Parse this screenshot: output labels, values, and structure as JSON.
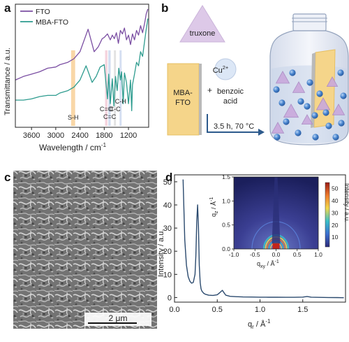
{
  "panels": {
    "a": "a",
    "b": "b",
    "c": "c",
    "d": "d"
  },
  "colors": {
    "fto": "#7b4fa3",
    "mba_fto": "#2e9c8f",
    "band_sh": "#f7c98a",
    "band_co": "#f2c6d3",
    "band_cc": "#c6d3ec",
    "band_ch": "#d8d8d8",
    "saxs_line": "#2b4a6e",
    "slab": "#f5d58a",
    "truxone": "#ddc9e8",
    "sphere": "#4a86cf",
    "jar_fill": "#e8edf5"
  },
  "ir": {
    "legend": [
      "FTO",
      "MBA-FTO"
    ],
    "ylabel": "Transmittance / a.u.",
    "xlabel": "Wavelength / cm",
    "xlabel_sup": "-1",
    "xticks": [
      "3600",
      "3000",
      "2400",
      "1800",
      "1200"
    ],
    "band_labels": [
      "S-H",
      "C=O",
      "C=C",
      "C-C",
      "C-H"
    ]
  },
  "scheme": {
    "truxone": "truxone",
    "ion": "Cu",
    "ion_charge": "2+",
    "plus": "+",
    "reagent_line1": "benzoic",
    "reagent_line2": "acid",
    "substrate_line1": "MBA-",
    "substrate_line2": "FTO",
    "condition": "3.5 h, 70 °C"
  },
  "sem": {
    "scale_bar": "2 μm"
  },
  "giwaxs": {
    "qz_label": "q",
    "qz_sub": "z",
    "qxy_label": "q",
    "qxy_sub": "xy",
    "unit": " / Å",
    "unit_sup": "-1",
    "qz_ticks": [
      "0.0",
      "0.5",
      "1.0",
      "1.5"
    ],
    "qxy_ticks": [
      "-1.0",
      "-0.5",
      "0.0",
      "0.5",
      "1.0"
    ],
    "colorbar_label": "Intensity / a.u.",
    "colorbar_ticks": [
      "10",
      "20",
      "30",
      "40",
      "50"
    ]
  },
  "chart_data": [
    {
      "type": "line",
      "title": "",
      "xlabel": "Wavelength / cm-1",
      "ylabel": "Transmittance / a.u.",
      "xlim": [
        4000,
        700
      ],
      "xticks": [
        3600,
        3000,
        2400,
        1800,
        1200
      ],
      "series": [
        {
          "name": "FTO",
          "x": [
            4000,
            3800,
            3600,
            3400,
            3200,
            3000,
            2900,
            2700,
            2550,
            2400,
            2200,
            2050,
            1950,
            1850,
            1800,
            1720,
            1650,
            1600,
            1550,
            1500,
            1450,
            1400,
            1350,
            1300,
            1250,
            1200,
            1150,
            1100,
            1050,
            1000,
            950,
            900,
            850,
            800,
            760,
            720
          ],
          "y": [
            0.4,
            0.43,
            0.45,
            0.47,
            0.5,
            0.51,
            0.53,
            0.55,
            0.58,
            0.64,
            0.83,
            0.64,
            0.68,
            0.75,
            0.76,
            0.79,
            0.74,
            0.78,
            0.75,
            0.8,
            0.71,
            0.82,
            0.79,
            0.84,
            0.74,
            0.78,
            0.7,
            0.79,
            0.74,
            0.82,
            0.78,
            0.86,
            0.8,
            0.88,
            0.96,
            1.0
          ]
        },
        {
          "name": "MBA-FTO",
          "x": [
            4000,
            3800,
            3600,
            3400,
            3200,
            3000,
            2900,
            2700,
            2550,
            2400,
            2250,
            2100,
            2000,
            1900,
            1800,
            1720,
            1690,
            1650,
            1600,
            1560,
            1520,
            1480,
            1440,
            1400,
            1370,
            1330,
            1300,
            1250,
            1200,
            1150,
            1120,
            1100,
            1050,
            1000,
            950,
            900,
            850,
            800,
            760,
            720
          ],
          "y": [
            0.23,
            0.23,
            0.24,
            0.26,
            0.27,
            0.27,
            0.29,
            0.31,
            0.34,
            0.4,
            0.52,
            0.38,
            0.43,
            0.51,
            0.53,
            0.24,
            0.45,
            0.2,
            0.41,
            0.18,
            0.43,
            0.31,
            0.5,
            0.4,
            0.47,
            0.2,
            0.46,
            0.38,
            0.2,
            0.4,
            0.14,
            0.36,
            0.45,
            0.55,
            0.52,
            0.64,
            0.6,
            0.73,
            0.83,
            0.92
          ]
        }
      ],
      "bands_cm": {
        "S-H": [
          2620,
          2520
        ],
        "C=O": [
          1780,
          1720
        ],
        "C=C": [
          1700,
          1640
        ],
        "C-C": [
          1560,
          1510
        ],
        "C-H": [
          1420,
          1370
        ]
      }
    },
    {
      "type": "line",
      "title": "",
      "xlabel": "qr / Å-1",
      "ylabel": "Intensity / a.u.",
      "xlim": [
        0.0,
        2.0
      ],
      "ylim": [
        -2,
        53
      ],
      "xticks": [
        0.0,
        0.5,
        1.0,
        1.5
      ],
      "yticks": [
        0,
        10,
        20,
        30,
        40,
        50
      ],
      "series": [
        {
          "name": "",
          "x": [
            0.1,
            0.11,
            0.12,
            0.14,
            0.16,
            0.18,
            0.2,
            0.22,
            0.24,
            0.25,
            0.26,
            0.27,
            0.28,
            0.29,
            0.3,
            0.31,
            0.32,
            0.34,
            0.36,
            0.4,
            0.45,
            0.5,
            0.53,
            0.56,
            0.58,
            0.6,
            0.65,
            0.72,
            0.8,
            0.9,
            1.0,
            1.1,
            1.2,
            1.3,
            1.4,
            1.5,
            1.55,
            1.6,
            1.7,
            1.8,
            1.9,
            1.98
          ],
          "y": [
            51,
            38,
            25,
            14,
            9.0,
            7.0,
            6.2,
            6.5,
            10,
            18,
            33,
            40,
            31,
            14,
            6.5,
            3.8,
            2.8,
            1.9,
            1.4,
            1.0,
            0.9,
            1.2,
            2.1,
            3.1,
            2.0,
            1.0,
            0.5,
            0.35,
            0.25,
            0.2,
            0.15,
            0.12,
            0.12,
            0.1,
            0.1,
            0.18,
            0.45,
            0.15,
            0.05,
            0.0,
            -0.05,
            -0.1
          ]
        }
      ]
    }
  ]
}
